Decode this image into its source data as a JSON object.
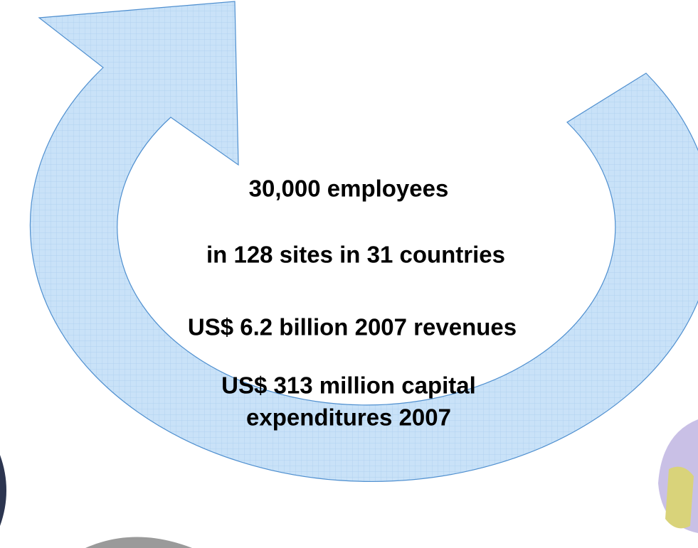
{
  "lines": [
    "30,000 employees",
    "in 128 sites in 31 countries",
    "US$ 6.2 billion 2007 revenues",
    "US$ 313 million capital",
    "expenditures 2007"
  ]
}
